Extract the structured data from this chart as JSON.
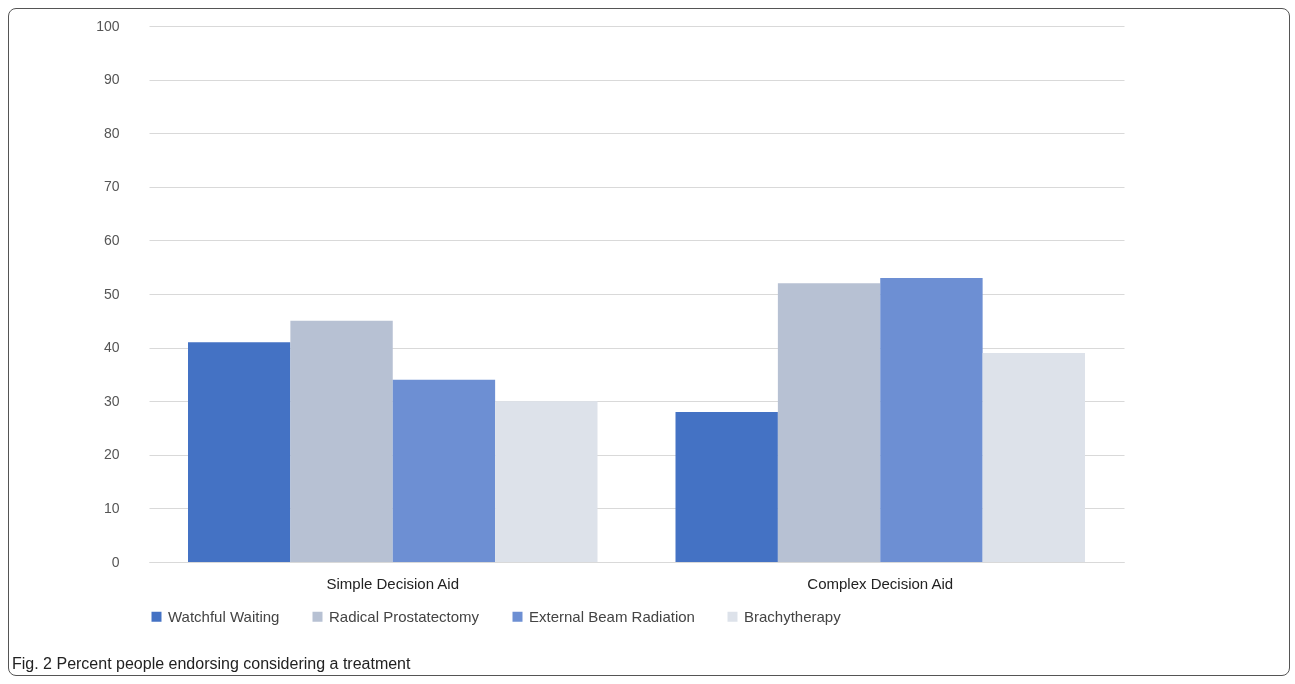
{
  "chart_data": {
    "type": "bar",
    "title": "Fig. 2  Percent people endorsing considering a treatment",
    "categories": [
      "Simple Decision Aid",
      "Complex Decision Aid"
    ],
    "series": [
      {
        "name": "Watchful Waiting",
        "color": "#4472c4",
        "values": [
          41,
          28
        ]
      },
      {
        "name": "Radical Prostatectomy",
        "color": "#b7c1d3",
        "values": [
          45,
          52
        ]
      },
      {
        "name": "External Beam Radiation",
        "color": "#6d8fd3",
        "values": [
          34,
          53
        ]
      },
      {
        "name": "Brachytherapy",
        "color": "#dde2ea",
        "values": [
          30,
          39
        ]
      }
    ],
    "ylim": [
      0,
      100
    ],
    "yticks": [
      0,
      10,
      20,
      30,
      40,
      50,
      60,
      70,
      80,
      90,
      100
    ],
    "grid": "y",
    "legend": "bottom"
  }
}
